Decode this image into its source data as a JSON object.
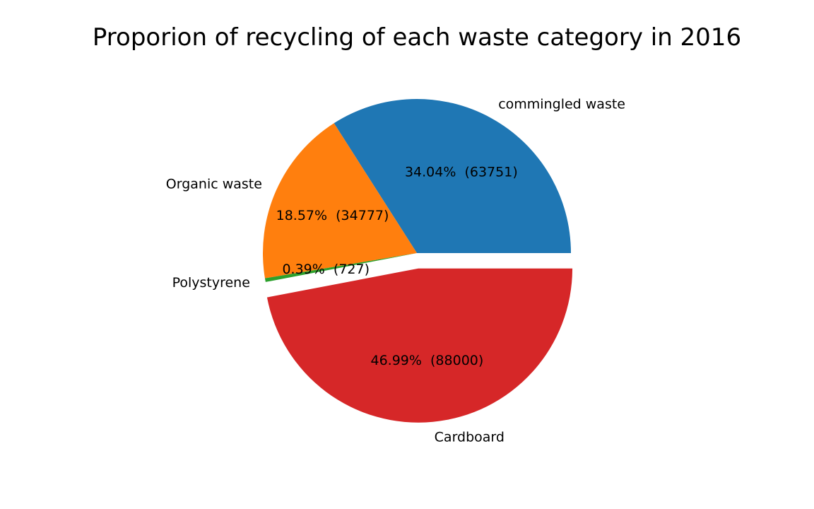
{
  "chart_data": {
    "type": "pie",
    "title": "Proporion of recycling of each waste category in 2016",
    "slices": [
      {
        "label": "commingled waste",
        "value": 63751,
        "pct_label": "34.04%  (63751)",
        "color": "#1f77b4",
        "explode": false
      },
      {
        "label": "Organic waste",
        "value": 34777,
        "pct_label": "18.57%  (34777)",
        "color": "#ff7f0e",
        "explode": false
      },
      {
        "label": "Polystyrene",
        "value": 727,
        "pct_label": "0.39%  (727)",
        "color": "#2ca02c",
        "explode": false
      },
      {
        "label": "Cardboard",
        "value": 88000,
        "pct_label": "46.99%  (88000)",
        "color": "#d62728",
        "explode": true
      }
    ],
    "start_angle_deg": 0,
    "direction": "counterclockwise",
    "legend": "none"
  }
}
